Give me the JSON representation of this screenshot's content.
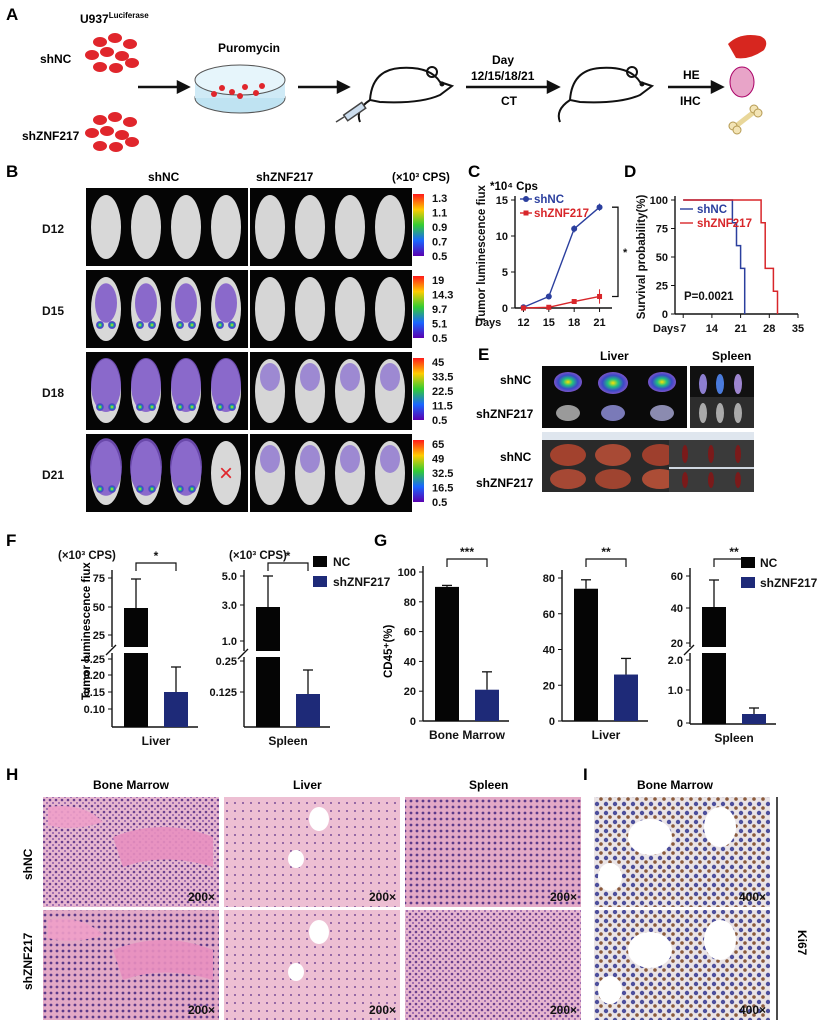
{
  "panel_labels": {
    "a": "A",
    "b": "B",
    "c": "C",
    "d": "D",
    "e": "E",
    "f": "F",
    "g": "G",
    "h": "H",
    "i": "I"
  },
  "panelA": {
    "cell_line": "U937",
    "cell_line_sup": "Luciferase",
    "shnc": "shNC",
    "shznf": "shZNF217",
    "puromycin": "Puromycin",
    "day": "Day",
    "days": "12/15/18/21",
    "ct": "CT",
    "he": "HE",
    "ihc": "IHC"
  },
  "panelB": {
    "col1": "shNC",
    "col2": "shZNF217",
    "unit": "(×10³ CPS)",
    "rows": [
      {
        "day": "D12",
        "scale": [
          "1.3",
          "1.1",
          "0.9",
          "0.7",
          "0.5"
        ]
      },
      {
        "day": "D15",
        "scale": [
          "19",
          "14.3",
          "9.7",
          "5.1",
          "0.5"
        ]
      },
      {
        "day": "D18",
        "scale": [
          "45",
          "33.5",
          "22.5",
          "11.5",
          "0.5"
        ]
      },
      {
        "day": "D21",
        "scale": [
          "65",
          "49",
          "32.5",
          "16.5",
          "0.5"
        ]
      }
    ],
    "dead_mark": "×"
  },
  "panelE": {
    "liver": "Liver",
    "spleen": "Spleen",
    "shnc": "shNC",
    "shznf": "shZNF217"
  },
  "panelF": {
    "ylabel": "Tumor luminescence fiux",
    "unit": "(×10³ CPS)",
    "legend": [
      "NC",
      "shZNF217"
    ],
    "liver": {
      "xlabel": "Liver",
      "sig": "*",
      "ticks_top": [
        "75",
        "50",
        "25"
      ],
      "ticks_bot": [
        "0.25",
        "0.20",
        "0.15",
        "0.10"
      ],
      "nc": 47,
      "nc_err": 72,
      "sh": 0.152,
      "sh_err": 0.225
    },
    "spleen": {
      "xlabel": "Spleen",
      "sig": "*",
      "ticks_top": [
        "5.0",
        "3.0",
        "1.0"
      ],
      "ticks_bot": [
        "0.25",
        "0.125"
      ],
      "nc": 3.1,
      "nc_err": 4.8,
      "sh": 0.12,
      "sh_err": 0.18
    }
  },
  "panelG": {
    "ylabel": "CD45⁺(%)",
    "legend": [
      "NC",
      "shZNF217"
    ],
    "bm": {
      "xlabel": "Bone Marrow",
      "sig": "***",
      "ticks": [
        "100",
        "80",
        "60",
        "40",
        "20",
        "0"
      ],
      "nc": 90,
      "nc_err": 91,
      "sh": 21,
      "sh_err": 33
    },
    "liver": {
      "xlabel": "Liver",
      "sig": "**",
      "ticks": [
        "80",
        "60",
        "40",
        "20",
        "0"
      ],
      "nc": 74,
      "nc_err": 79,
      "sh": 26,
      "sh_err": 35
    },
    "spleen": {
      "xlabel": "Spleen",
      "sig": "**",
      "ticks_top": [
        "60",
        "40",
        "20"
      ],
      "ticks_bot": [
        "2.0",
        "1.0",
        "0"
      ],
      "nc": 41,
      "nc_err": 56,
      "sh": 0.32,
      "sh_err": 0.5
    }
  },
  "panelH": {
    "cols": [
      "Bone Marrow",
      "Liver",
      "Spleen"
    ],
    "rows": [
      "shNC",
      "shZNF217"
    ],
    "mag": "200×"
  },
  "panelI": {
    "col": "Bone Marrow",
    "mag": "400×",
    "stain": "Ki67"
  },
  "chart_data": [
    {
      "type": "line",
      "title": "",
      "unit_note": "*10⁴ Cps",
      "ylabel": "Tumor luminescence fiux",
      "xlabel": "Days",
      "x": [
        12,
        15,
        18,
        21
      ],
      "ylim": [
        0,
        15
      ],
      "yticks": [
        0,
        5,
        10,
        15
      ],
      "series": [
        {
          "name": "shNC",
          "color": "#2b3f9e",
          "values": [
            0.1,
            1.6,
            11.0,
            14.0
          ],
          "err": [
            0.1,
            0.2,
            0.5,
            0.5
          ]
        },
        {
          "name": "shZNF217",
          "color": "#d8262a",
          "values": [
            0.0,
            0.1,
            0.9,
            1.6
          ],
          "err": [
            0.0,
            0.05,
            0.3,
            1.0
          ]
        }
      ],
      "sig": "*"
    },
    {
      "type": "line",
      "title": "",
      "ylabel": "Survival probability(%)",
      "xlabel": "Days",
      "x_ticks": [
        7,
        14,
        21,
        28,
        35
      ],
      "ylim": [
        0,
        100
      ],
      "yticks": [
        0,
        25,
        50,
        75,
        100
      ],
      "annotation": "P=0.0021",
      "series": [
        {
          "name": "shNC",
          "color": "#2b3f9e",
          "steps": [
            [
              7,
              100
            ],
            [
              19,
              100
            ],
            [
              19,
              80
            ],
            [
              20,
              80
            ],
            [
              20,
              60
            ],
            [
              21,
              60
            ],
            [
              21,
              40
            ],
            [
              22,
              40
            ],
            [
              22,
              0
            ]
          ]
        },
        {
          "name": "shZNF217",
          "color": "#d8262a",
          "steps": [
            [
              7,
              100
            ],
            [
              26,
              100
            ],
            [
              26,
              80
            ],
            [
              27,
              80
            ],
            [
              27,
              40
            ],
            [
              29,
              40
            ],
            [
              29,
              20
            ],
            [
              30,
              20
            ],
            [
              30,
              0
            ]
          ]
        }
      ]
    }
  ]
}
